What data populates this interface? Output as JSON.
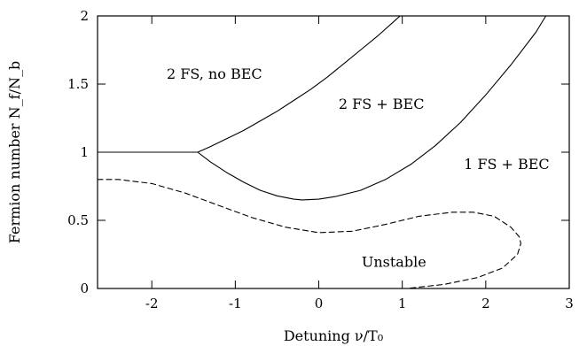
{
  "chart_data": {
    "type": "line",
    "xlabel": "Detuning ν/T₀",
    "ylabel": "Fermion number N_f/N_b",
    "xlim": [
      -2.65,
      3
    ],
    "ylim": [
      0,
      2
    ],
    "x_ticks": [
      "-2",
      "-1",
      "0",
      "1",
      "2",
      "3"
    ],
    "x_tick_values": [
      -2,
      -1,
      0,
      1,
      2,
      3
    ],
    "y_ticks": [
      "0",
      "0.5",
      "1",
      "1.5",
      "2"
    ],
    "y_tick_values": [
      0,
      0.5,
      1,
      1.5,
      2
    ],
    "grid": false,
    "series": [
      {
        "style": "solid",
        "x": [
          -2.65,
          -2.0,
          -1.5,
          -1.45,
          -1.3,
          -1.1,
          -0.9,
          -0.7,
          -0.5,
          -0.3,
          -0.1,
          0.1,
          0.3,
          0.5,
          0.7,
          0.9,
          1.1,
          1.3,
          1.45
        ],
        "y": [
          1.0,
          1.0,
          1.0,
          1.0,
          1.04,
          1.1,
          1.16,
          1.23,
          1.3,
          1.38,
          1.46,
          1.55,
          1.65,
          1.75,
          1.85,
          1.96,
          2.07,
          2.18,
          2.27
        ]
      },
      {
        "style": "solid",
        "x": [
          -1.45,
          -1.3,
          -1.1,
          -0.9,
          -0.7,
          -0.5,
          -0.3,
          -0.2,
          0.0,
          0.2,
          0.5,
          0.8,
          1.1,
          1.4,
          1.7,
          2.0,
          2.3,
          2.6,
          2.72
        ],
        "y": [
          1.0,
          0.93,
          0.85,
          0.78,
          0.72,
          0.68,
          0.655,
          0.65,
          0.655,
          0.675,
          0.72,
          0.8,
          0.91,
          1.05,
          1.22,
          1.42,
          1.64,
          1.88,
          2.0
        ]
      },
      {
        "style": "dashed",
        "x": [
          -2.65,
          -2.4,
          -2.0,
          -1.6,
          -1.2,
          -0.8,
          -0.4,
          0.0,
          0.4,
          0.8,
          1.2,
          1.6,
          1.85,
          2.1,
          2.3,
          2.4,
          2.42,
          2.38,
          2.2,
          1.9,
          1.5,
          1.2,
          1.05
        ],
        "y": [
          0.8,
          0.8,
          0.77,
          0.7,
          0.61,
          0.52,
          0.45,
          0.41,
          0.42,
          0.47,
          0.53,
          0.56,
          0.56,
          0.53,
          0.45,
          0.38,
          0.33,
          0.25,
          0.15,
          0.08,
          0.03,
          0.01,
          0.0
        ]
      }
    ],
    "annotations": [
      {
        "text": "2 FS, no BEC",
        "x": -1.25,
        "y": 1.57
      },
      {
        "text": "2 FS + BEC",
        "x": 0.75,
        "y": 1.35
      },
      {
        "text": "1 FS + BEC",
        "x": 2.25,
        "y": 0.91
      },
      {
        "text": "Unstable",
        "x": 0.9,
        "y": 0.19
      }
    ]
  }
}
